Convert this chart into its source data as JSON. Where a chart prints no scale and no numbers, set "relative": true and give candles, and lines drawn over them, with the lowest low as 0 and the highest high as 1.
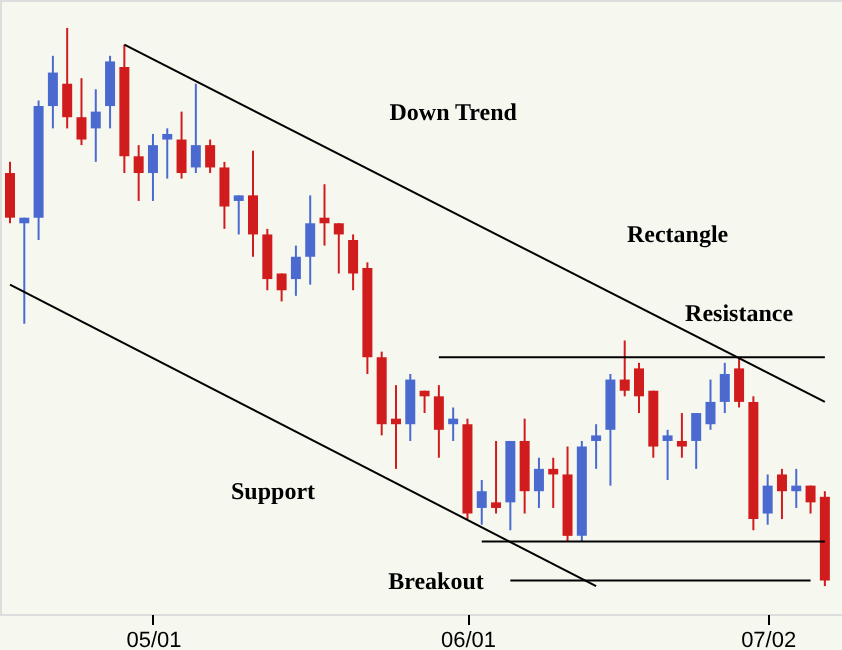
{
  "chart_data": {
    "type": "candlestick",
    "relative": true,
    "categories": [
      null,
      null,
      null,
      null,
      null,
      null,
      null,
      null,
      null,
      null,
      "05/01",
      null,
      null,
      null,
      null,
      null,
      null,
      null,
      null,
      null,
      null,
      null,
      null,
      null,
      null,
      null,
      null,
      null,
      null,
      null,
      null,
      null,
      "06/01",
      null,
      null,
      null,
      null,
      null,
      null,
      null,
      null,
      null,
      null,
      null,
      null,
      null,
      null,
      null,
      null,
      null,
      null,
      null,
      null,
      "07/02",
      null,
      null,
      null,
      null
    ],
    "grid": false,
    "ohlc": [
      [
        0.74,
        0.76,
        0.65,
        0.66
      ],
      [
        0.65,
        0.66,
        0.47,
        0.66
      ],
      [
        0.66,
        0.87,
        0.62,
        0.86
      ],
      [
        0.86,
        0.95,
        0.82,
        0.92
      ],
      [
        0.9,
        1.0,
        0.82,
        0.84
      ],
      [
        0.84,
        0.91,
        0.79,
        0.8
      ],
      [
        0.82,
        0.89,
        0.76,
        0.85
      ],
      [
        0.86,
        0.95,
        0.82,
        0.94
      ],
      [
        0.93,
        0.97,
        0.74,
        0.77
      ],
      [
        0.77,
        0.79,
        0.69,
        0.74
      ],
      [
        0.74,
        0.81,
        0.69,
        0.79
      ],
      [
        0.8,
        0.82,
        0.73,
        0.81
      ],
      [
        0.8,
        0.85,
        0.73,
        0.74
      ],
      [
        0.75,
        0.9,
        0.74,
        0.79
      ],
      [
        0.79,
        0.8,
        0.74,
        0.75
      ],
      [
        0.75,
        0.76,
        0.64,
        0.68
      ],
      [
        0.69,
        0.7,
        0.63,
        0.7
      ],
      [
        0.7,
        0.78,
        0.59,
        0.63
      ],
      [
        0.63,
        0.64,
        0.53,
        0.55
      ],
      [
        0.56,
        0.56,
        0.51,
        0.53
      ],
      [
        0.55,
        0.61,
        0.52,
        0.59
      ],
      [
        0.59,
        0.7,
        0.54,
        0.65
      ],
      [
        0.66,
        0.72,
        0.61,
        0.65
      ],
      [
        0.65,
        0.65,
        0.56,
        0.63
      ],
      [
        0.62,
        0.63,
        0.53,
        0.56
      ],
      [
        0.57,
        0.58,
        0.38,
        0.41
      ],
      [
        0.41,
        0.42,
        0.27,
        0.29
      ],
      [
        0.3,
        0.36,
        0.21,
        0.29
      ],
      [
        0.29,
        0.38,
        0.26,
        0.37
      ],
      [
        0.35,
        0.35,
        0.31,
        0.34
      ],
      [
        0.34,
        0.36,
        0.23,
        0.28
      ],
      [
        0.29,
        0.32,
        0.26,
        0.3
      ],
      [
        0.29,
        0.3,
        0.12,
        0.13
      ],
      [
        0.14,
        0.19,
        0.11,
        0.17
      ],
      [
        0.15,
        0.26,
        0.13,
        0.14
      ],
      [
        0.15,
        0.26,
        0.1,
        0.26
      ],
      [
        0.26,
        0.3,
        0.13,
        0.17
      ],
      [
        0.17,
        0.23,
        0.14,
        0.21
      ],
      [
        0.21,
        0.23,
        0.14,
        0.2
      ],
      [
        0.2,
        0.25,
        0.08,
        0.09
      ],
      [
        0.09,
        0.26,
        0.08,
        0.25
      ],
      [
        0.26,
        0.29,
        0.21,
        0.27
      ],
      [
        0.28,
        0.38,
        0.18,
        0.37
      ],
      [
        0.37,
        0.44,
        0.34,
        0.35
      ],
      [
        0.39,
        0.4,
        0.31,
        0.34
      ],
      [
        0.35,
        0.35,
        0.23,
        0.25
      ],
      [
        0.26,
        0.28,
        0.19,
        0.27
      ],
      [
        0.26,
        0.31,
        0.23,
        0.25
      ],
      [
        0.26,
        0.31,
        0.21,
        0.31
      ],
      [
        0.29,
        0.37,
        0.28,
        0.33
      ],
      [
        0.33,
        0.4,
        0.31,
        0.38
      ],
      [
        0.39,
        0.41,
        0.32,
        0.33
      ],
      [
        0.33,
        0.34,
        0.1,
        0.12
      ],
      [
        0.13,
        0.2,
        0.11,
        0.18
      ],
      [
        0.2,
        0.21,
        0.12,
        0.17
      ],
      [
        0.17,
        0.21,
        0.14,
        0.18
      ],
      [
        0.18,
        0.18,
        0.13,
        0.15
      ],
      [
        0.16,
        0.17,
        0.0,
        0.01
      ]
    ],
    "colors": [
      "#d01c1c",
      "#4a6ad0",
      "#4a6ad0",
      "#4a6ad0",
      "#d01c1c",
      "#d01c1c",
      "#4a6ad0",
      "#4a6ad0",
      "#d01c1c",
      "#d01c1c",
      "#4a6ad0",
      "#4a6ad0",
      "#d01c1c",
      "#4a6ad0",
      "#d01c1c",
      "#d01c1c",
      "#4a6ad0",
      "#d01c1c",
      "#d01c1c",
      "#d01c1c",
      "#4a6ad0",
      "#4a6ad0",
      "#d01c1c",
      "#d01c1c",
      "#d01c1c",
      "#d01c1c",
      "#d01c1c",
      "#d01c1c",
      "#4a6ad0",
      "#d01c1c",
      "#d01c1c",
      "#4a6ad0",
      "#d01c1c",
      "#4a6ad0",
      "#d01c1c",
      "#4a6ad0",
      "#d01c1c",
      "#4a6ad0",
      "#d01c1c",
      "#d01c1c",
      "#4a6ad0",
      "#4a6ad0",
      "#4a6ad0",
      "#d01c1c",
      "#d01c1c",
      "#d01c1c",
      "#4a6ad0",
      "#d01c1c",
      "#4a6ad0",
      "#4a6ad0",
      "#4a6ad0",
      "#d01c1c",
      "#d01c1c",
      "#4a6ad0",
      "#d01c1c",
      "#4a6ad0",
      "#d01c1c",
      "#d01c1c"
    ],
    "series": [
      {
        "type": "line",
        "color": "#000000",
        "values": [
          null,
          null,
          null,
          null,
          null,
          null,
          null,
          null,
          0.97,
          null,
          null,
          null,
          null,
          null,
          null,
          null,
          null,
          null,
          null,
          null,
          null,
          null,
          null,
          null,
          null,
          null,
          null,
          null,
          null,
          null,
          null,
          null,
          null,
          null,
          null,
          null,
          null,
          null,
          null,
          null,
          null,
          null,
          null,
          null,
          null,
          null,
          null,
          null,
          null,
          null,
          null,
          null,
          null,
          null,
          null,
          null,
          null,
          0.33
        ]
      },
      {
        "type": "line",
        "color": "#000000",
        "values": [
          0.54,
          null,
          null,
          null,
          null,
          null,
          null,
          null,
          null,
          null,
          null,
          null,
          null,
          null,
          null,
          null,
          null,
          null,
          null,
          null,
          null,
          null,
          null,
          null,
          null,
          null,
          null,
          null,
          null,
          null,
          null,
          null,
          null,
          null,
          null,
          null,
          null,
          null,
          null,
          null,
          null,
          0,
          null,
          null,
          null,
          null,
          null,
          null,
          null,
          null,
          null,
          null,
          null,
          null,
          null,
          null,
          null,
          null
        ]
      },
      {
        "type": "line",
        "color": "#000000",
        "values": [
          null,
          null,
          null,
          null,
          null,
          null,
          null,
          null,
          null,
          null,
          null,
          null,
          null,
          null,
          null,
          null,
          null,
          null,
          null,
          null,
          null,
          null,
          null,
          null,
          null,
          null,
          null,
          null,
          null,
          null,
          0.41,
          null,
          null,
          null,
          null,
          null,
          null,
          null,
          null,
          null,
          null,
          null,
          null,
          null,
          null,
          null,
          null,
          null,
          null,
          null,
          null,
          null,
          null,
          null,
          null,
          null,
          null,
          0.41
        ]
      },
      {
        "type": "line",
        "color": "#000000",
        "values": [
          null,
          null,
          null,
          null,
          null,
          null,
          null,
          null,
          null,
          null,
          null,
          null,
          null,
          null,
          null,
          null,
          null,
          null,
          null,
          null,
          null,
          null,
          null,
          null,
          null,
          null,
          null,
          null,
          null,
          null,
          null,
          null,
          null,
          0.08,
          null,
          null,
          null,
          null,
          null,
          null,
          null,
          null,
          null,
          null,
          null,
          null,
          null,
          null,
          null,
          null,
          null,
          null,
          null,
          null,
          null,
          null,
          null,
          0.08
        ]
      },
      {
        "type": "line",
        "color": "#000000",
        "values": [
          null,
          null,
          null,
          null,
          null,
          null,
          null,
          null,
          null,
          null,
          null,
          null,
          null,
          null,
          null,
          null,
          null,
          null,
          null,
          null,
          null,
          null,
          null,
          null,
          null,
          null,
          null,
          null,
          null,
          null,
          null,
          null,
          null,
          null,
          null,
          0.01,
          null,
          null,
          null,
          null,
          null,
          null,
          null,
          null,
          null,
          null,
          null,
          null,
          null,
          null,
          null,
          null,
          null,
          null,
          null,
          null,
          0.01,
          null
        ]
      }
    ],
    "annotations": [
      "Down Trend",
      "Rectangle",
      "Resistance",
      "Support",
      "Breakout"
    ]
  }
}
